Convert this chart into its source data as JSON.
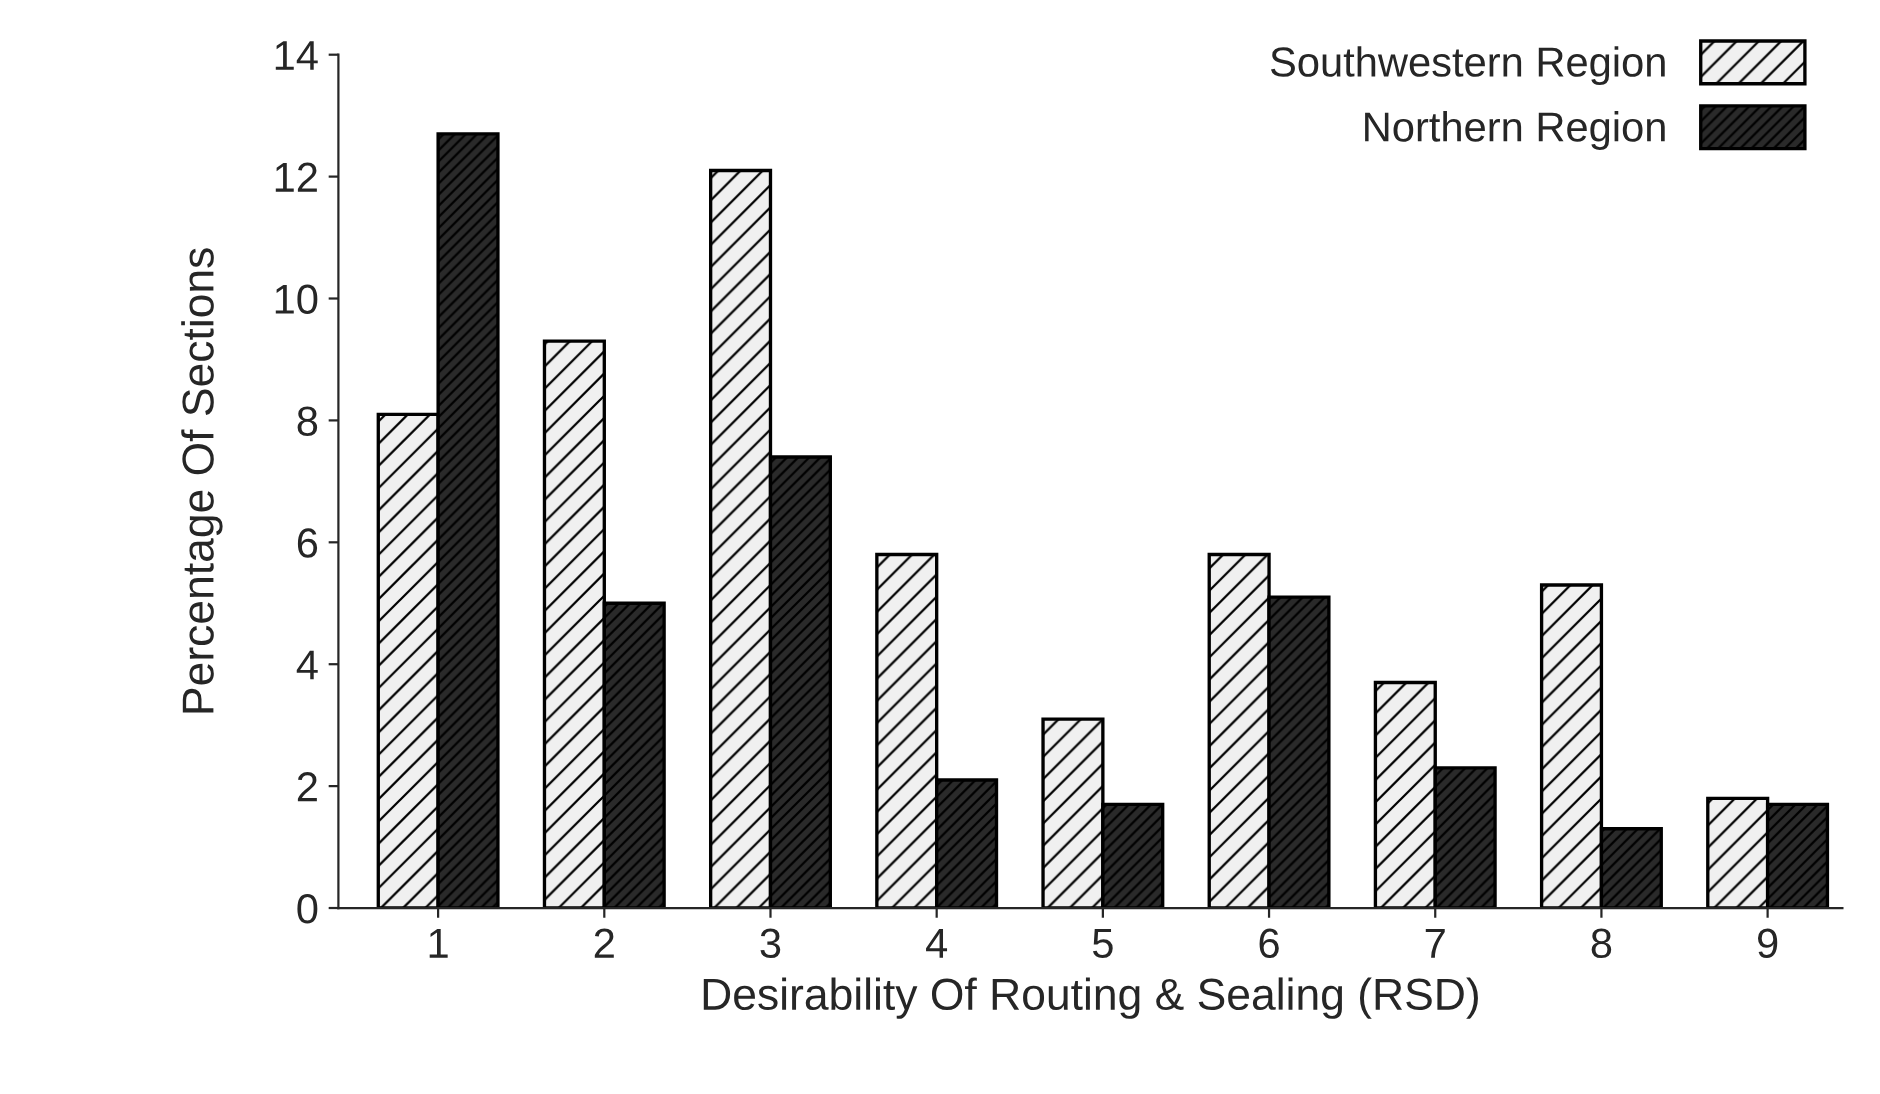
{
  "chart_data": {
    "type": "bar",
    "xlabel": "Desirability Of Routing & Sealing (RSD)",
    "ylabel": "Percentage Of Sections",
    "categories": [
      "1",
      "2",
      "3",
      "4",
      "5",
      "6",
      "7",
      "8",
      "9"
    ],
    "series": [
      {
        "name": "Southwestern Region",
        "color": "#f0f0f0",
        "values": [
          8.1,
          9.3,
          12.1,
          5.8,
          3.1,
          5.8,
          3.7,
          5.3,
          1.8
        ]
      },
      {
        "name": "Northern Region",
        "color": "#2a2a2a",
        "values": [
          12.7,
          5.0,
          7.4,
          2.1,
          1.7,
          5.1,
          2.3,
          1.3,
          1.7
        ]
      }
    ],
    "ylim": [
      0,
      14
    ],
    "yticks": [
      0,
      2,
      4,
      6,
      8,
      10,
      12,
      14
    ],
    "grid": false,
    "legend": "top right"
  }
}
